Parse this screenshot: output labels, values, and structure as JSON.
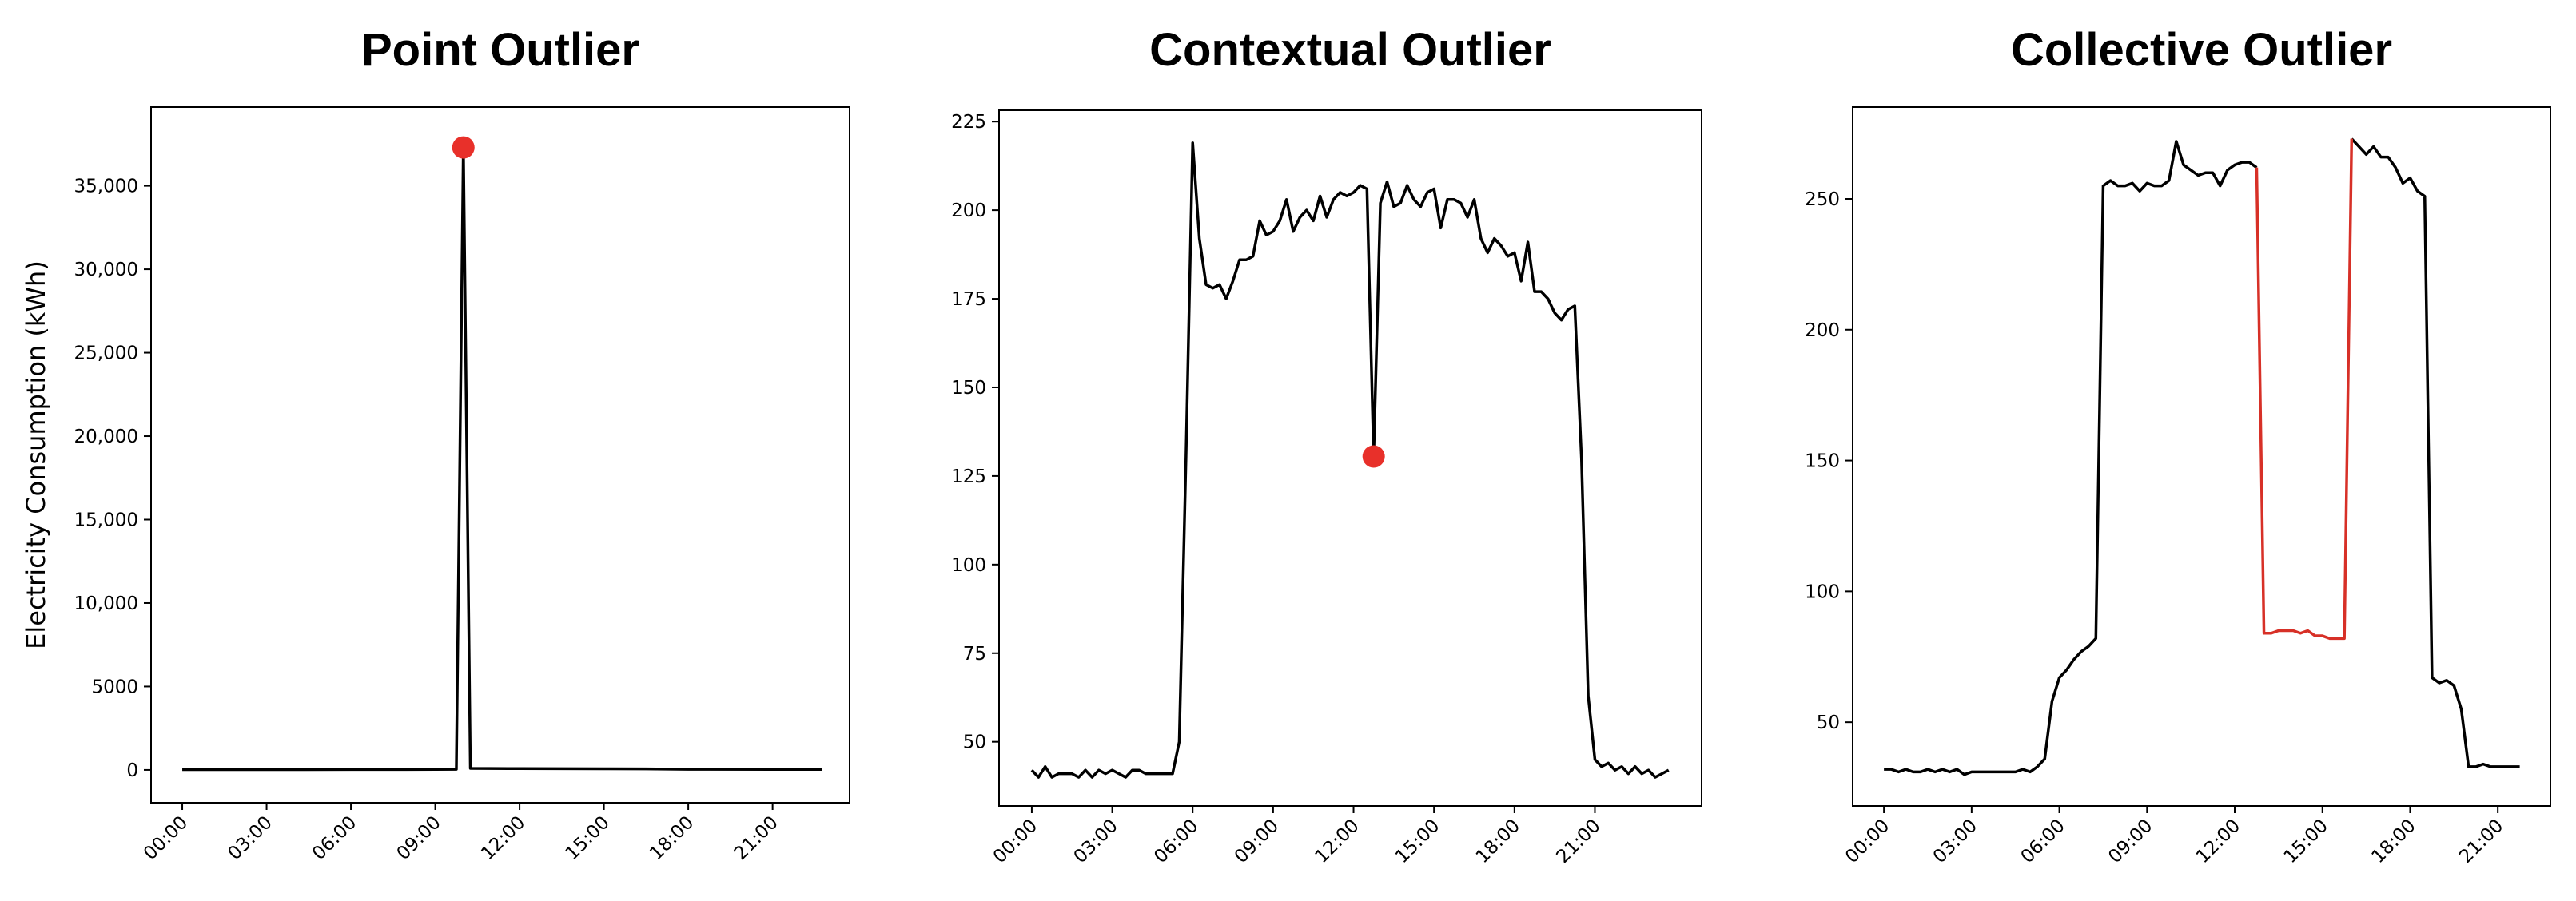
{
  "chart_data": [
    {
      "type": "line",
      "title": "Point Outlier",
      "y_label": "Electricity Consumption (kWh)",
      "xlim": [
        -1.11,
        23.74
      ],
      "ylim": [
        -1966,
        39720
      ],
      "xticks": [
        {
          "value": 0,
          "label": "00:00"
        },
        {
          "value": 3,
          "label": "03:00"
        },
        {
          "value": 6,
          "label": "06:00"
        },
        {
          "value": 9,
          "label": "09:00"
        },
        {
          "value": 12,
          "label": "12:00"
        },
        {
          "value": 15,
          "label": "15:00"
        },
        {
          "value": 18,
          "label": "18:00"
        },
        {
          "value": 21,
          "label": "21:00"
        }
      ],
      "yticks": [
        0,
        5000,
        {
          "value": 10000,
          "label": "10,000"
        },
        {
          "value": 15000,
          "label": "15,000"
        },
        {
          "value": 20000,
          "label": "20,000"
        },
        {
          "value": 25000,
          "label": "25,000"
        },
        {
          "value": 30000,
          "label": "30,000"
        },
        {
          "value": 35000,
          "label": "35,000"
        }
      ],
      "series": [
        {
          "style": "line",
          "color": "#000000",
          "x": [
            0,
            3,
            6,
            9,
            9.75,
            10,
            10.25,
            12,
            15,
            16.5,
            18,
            21,
            22.75
          ],
          "values": [
            20,
            20,
            25,
            30,
            40,
            37300,
            90,
            80,
            70,
            60,
            40,
            30,
            30
          ]
        },
        {
          "style": "dot",
          "color": "#e8302a",
          "x": [
            10
          ],
          "values": [
            37300
          ]
        }
      ]
    },
    {
      "type": "line",
      "title": "Contextual Outlier",
      "xlim": [
        -1.22,
        24.98
      ],
      "ylim": [
        31.9,
        228.2
      ],
      "xticks": [
        {
          "value": 0,
          "label": "00:00"
        },
        {
          "value": 3,
          "label": "03:00"
        },
        {
          "value": 6,
          "label": "06:00"
        },
        {
          "value": 9,
          "label": "09:00"
        },
        {
          "value": 12,
          "label": "12:00"
        },
        {
          "value": 15,
          "label": "15:00"
        },
        {
          "value": 18,
          "label": "18:00"
        },
        {
          "value": 21,
          "label": "21:00"
        }
      ],
      "yticks": [
        50,
        75,
        100,
        125,
        150,
        175,
        200,
        225
      ],
      "series": [
        {
          "style": "line",
          "color": "#000000",
          "x": [
            0,
            0.25,
            0.5,
            0.75,
            1,
            1.25,
            1.5,
            1.75,
            2,
            2.25,
            2.5,
            2.75,
            3,
            3.25,
            3.5,
            3.75,
            4,
            4.25,
            4.5,
            4.75,
            5,
            5.25,
            5.5,
            5.75,
            6,
            6.25,
            6.5,
            6.75,
            7,
            7.25,
            7.5,
            7.75,
            8,
            8.25,
            8.5,
            8.75,
            9,
            9.25,
            9.5,
            9.75,
            10,
            10.25,
            10.5,
            10.75,
            11,
            11.25,
            11.5,
            11.75,
            12,
            12.25,
            12.5,
            12.75,
            13,
            13.25,
            13.5,
            13.75,
            14,
            14.25,
            14.5,
            14.75,
            15,
            15.25,
            15.5,
            15.75,
            16,
            16.25,
            16.5,
            16.75,
            17,
            17.25,
            17.5,
            17.75,
            18,
            18.25,
            18.5,
            18.75,
            19,
            19.25,
            19.5,
            19.75,
            20,
            20.25,
            20.5,
            20.75,
            21,
            21.25,
            21.5,
            21.75,
            22,
            22.25,
            22.5,
            22.75,
            23,
            23.25,
            23.5,
            23.75
          ],
          "values": [
            42,
            40,
            43,
            40,
            41,
            41,
            41,
            40,
            42,
            40,
            42,
            41,
            42,
            41,
            40,
            42,
            42,
            41,
            41,
            41,
            41,
            41,
            50,
            130,
            219,
            192,
            179,
            178,
            179,
            175,
            180,
            186,
            186,
            187,
            197,
            193,
            194,
            197,
            203,
            194,
            198,
            200,
            197,
            204,
            198,
            203,
            205,
            204,
            205,
            207,
            206,
            130.5,
            202,
            208,
            201,
            202,
            207,
            203,
            201,
            205,
            206,
            195,
            203,
            203,
            202,
            198,
            203,
            192,
            188,
            192,
            190,
            187,
            188,
            180,
            191,
            177,
            177,
            175,
            171,
            169,
            172,
            173,
            130,
            63,
            45,
            43,
            44,
            42,
            43,
            41,
            43,
            41,
            42,
            40,
            41,
            42
          ]
        },
        {
          "style": "dot",
          "color": "#e8302a",
          "x": [
            12.75
          ],
          "values": [
            130.5
          ]
        }
      ]
    },
    {
      "type": "line",
      "title": "Collective Outlier",
      "xlim": [
        -1.07,
        22.8
      ],
      "ylim": [
        18.0,
        285.1
      ],
      "xticks": [
        {
          "value": 0,
          "label": "00:00"
        },
        {
          "value": 3,
          "label": "03:00"
        },
        {
          "value": 6,
          "label": "06:00"
        },
        {
          "value": 9,
          "label": "09:00"
        },
        {
          "value": 12,
          "label": "12:00"
        },
        {
          "value": 15,
          "label": "15:00"
        },
        {
          "value": 18,
          "label": "18:00"
        },
        {
          "value": 21,
          "label": "21:00"
        }
      ],
      "yticks": [
        50,
        100,
        150,
        200,
        250
      ],
      "series": [
        {
          "style": "line",
          "color": "#000000",
          "x": [
            0,
            0.25,
            0.5,
            0.75,
            1,
            1.25,
            1.5,
            1.75,
            2,
            2.25,
            2.5,
            2.75,
            3,
            3.25,
            3.5,
            3.75,
            4,
            4.25,
            4.5,
            4.75,
            5,
            5.25,
            5.5,
            5.75,
            6,
            6.25,
            6.5,
            6.75,
            7,
            7.25,
            7.5,
            7.75,
            8,
            8.25,
            8.5,
            8.75,
            9,
            9.25,
            9.5,
            9.75,
            10,
            10.25,
            10.5,
            10.75,
            11,
            11.25,
            11.5,
            11.75,
            12,
            12.25,
            12.5,
            12.75,
            13,
            13.25,
            13.5,
            13.75,
            14,
            14.25,
            14.5,
            14.75,
            15,
            15.25,
            15.5,
            15.75,
            16,
            16.25,
            16.5,
            16.75,
            17,
            17.25,
            17.5,
            17.75,
            18,
            18.25,
            18.5,
            18.75,
            19,
            19.25,
            19.5,
            19.75,
            20,
            20.25,
            20.5,
            20.75,
            21,
            21.25,
            21.5,
            21.75
          ],
          "values": [
            32,
            32,
            31,
            32,
            31,
            31,
            32,
            31,
            32,
            31,
            32,
            30,
            31,
            31,
            31,
            31,
            31,
            31,
            31,
            32,
            31,
            33,
            36,
            58,
            67,
            70,
            74,
            77,
            79,
            82,
            255,
            257,
            255,
            255,
            256,
            253,
            256,
            255,
            255,
            257,
            272,
            263,
            261,
            259,
            260,
            260,
            255,
            261,
            263,
            264,
            264,
            262,
            null,
            null,
            null,
            null,
            null,
            null,
            null,
            null,
            null,
            null,
            null,
            null,
            273,
            270,
            267,
            270,
            266,
            266,
            262,
            256,
            258,
            253,
            251,
            67,
            65,
            66,
            64,
            55,
            33,
            33,
            34,
            33,
            33,
            33,
            33,
            33
          ]
        },
        {
          "style": "line",
          "color": "#d73027",
          "x": [
            12.75,
            13,
            13.25,
            13.5,
            13.75,
            14,
            14.25,
            14.5,
            14.75,
            15,
            15.25,
            15.5,
            15.75,
            16
          ],
          "values": [
            262,
            84,
            84,
            85,
            85,
            85,
            84,
            85,
            83,
            83,
            82,
            82,
            82,
            273
          ]
        }
      ]
    }
  ]
}
